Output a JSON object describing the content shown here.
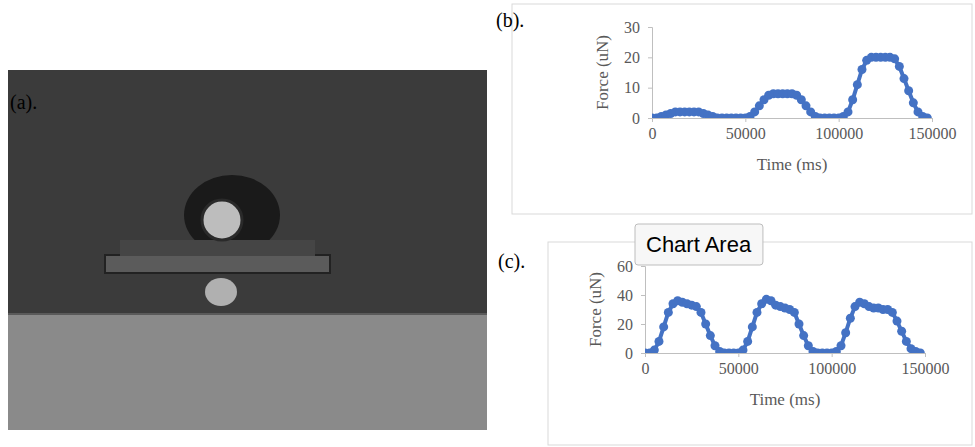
{
  "figure": {
    "panel_labels": [
      "(a).",
      "(b).",
      "(c)."
    ],
    "tooltip": "Chart Area"
  },
  "chart_data": [
    {
      "type": "line",
      "x_label": "Time (ms)",
      "y_label": "Force (uN)",
      "color": "#4472c4",
      "marker": "circle",
      "x": [
        0,
        2500,
        5000,
        7500,
        10000,
        12500,
        15000,
        17500,
        20000,
        22500,
        25000,
        27500,
        30000,
        32500,
        35000,
        37500,
        40000,
        42500,
        45000,
        47500,
        50000,
        52500,
        55000,
        57500,
        60000,
        62500,
        65000,
        67500,
        70000,
        72500,
        75000,
        77500,
        80000,
        82500,
        85000,
        87500,
        90000,
        92500,
        95000,
        97500,
        100000,
        102500,
        105000,
        107500,
        110000,
        112500,
        115000,
        117500,
        120000,
        122500,
        125000,
        127500,
        130000,
        132500,
        135000,
        137500,
        140000,
        142500,
        145000,
        147500
      ],
      "values": [
        0,
        0,
        0.5,
        1,
        1.5,
        2,
        2,
        2,
        2,
        2,
        2,
        1.5,
        1,
        0.5,
        0,
        0,
        0,
        0,
        0,
        0,
        0,
        0.5,
        2,
        4,
        6,
        7.5,
        8,
        8,
        8,
        8,
        8,
        7.5,
        6,
        4,
        2,
        0.5,
        0,
        0,
        0,
        0,
        0,
        0.5,
        2,
        6,
        11,
        16,
        19,
        20,
        20,
        20,
        20,
        20,
        19.5,
        17,
        13,
        9,
        5,
        2,
        0.5,
        0
      ],
      "xlim": [
        0,
        150000
      ],
      "xticks": [
        0,
        50000,
        100000,
        150000
      ],
      "ylim": [
        0,
        30
      ],
      "yticks": [
        0,
        10,
        20,
        30
      ],
      "grid": false
    },
    {
      "type": "line",
      "x_label": "Time (ms)",
      "y_label": "Force (uN)",
      "color": "#4472c4",
      "marker": "circle",
      "x": [
        0,
        2500,
        5000,
        7500,
        10000,
        12500,
        15000,
        17500,
        20000,
        22500,
        25000,
        27500,
        30000,
        32500,
        35000,
        37500,
        40000,
        42500,
        45000,
        47500,
        50000,
        52500,
        55000,
        57500,
        60000,
        62500,
        65000,
        67500,
        70000,
        72500,
        75000,
        77500,
        80000,
        82500,
        85000,
        87500,
        90000,
        92500,
        95000,
        97500,
        100000,
        102500,
        105000,
        107500,
        110000,
        112500,
        115000,
        117500,
        120000,
        122500,
        125000,
        127500,
        130000,
        132500,
        135000,
        137500,
        140000,
        142500,
        145000,
        147500
      ],
      "values": [
        0,
        0,
        2,
        8,
        18,
        28,
        34,
        36,
        35,
        34,
        33,
        32,
        28,
        20,
        12,
        5,
        1,
        0,
        0,
        0,
        0,
        2,
        8,
        18,
        28,
        34,
        37,
        36,
        33,
        32,
        31,
        30,
        28,
        20,
        12,
        5,
        1,
        0,
        0,
        0,
        0,
        1,
        5,
        14,
        24,
        32,
        35,
        34,
        32,
        31,
        31,
        30,
        30,
        28,
        22,
        15,
        8,
        3,
        1,
        0
      ],
      "xlim": [
        0,
        150000
      ],
      "xticks": [
        0,
        50000,
        100000,
        150000
      ],
      "ylim": [
        0,
        60
      ],
      "yticks": [
        0,
        20,
        40,
        60
      ],
      "grid": false
    }
  ]
}
